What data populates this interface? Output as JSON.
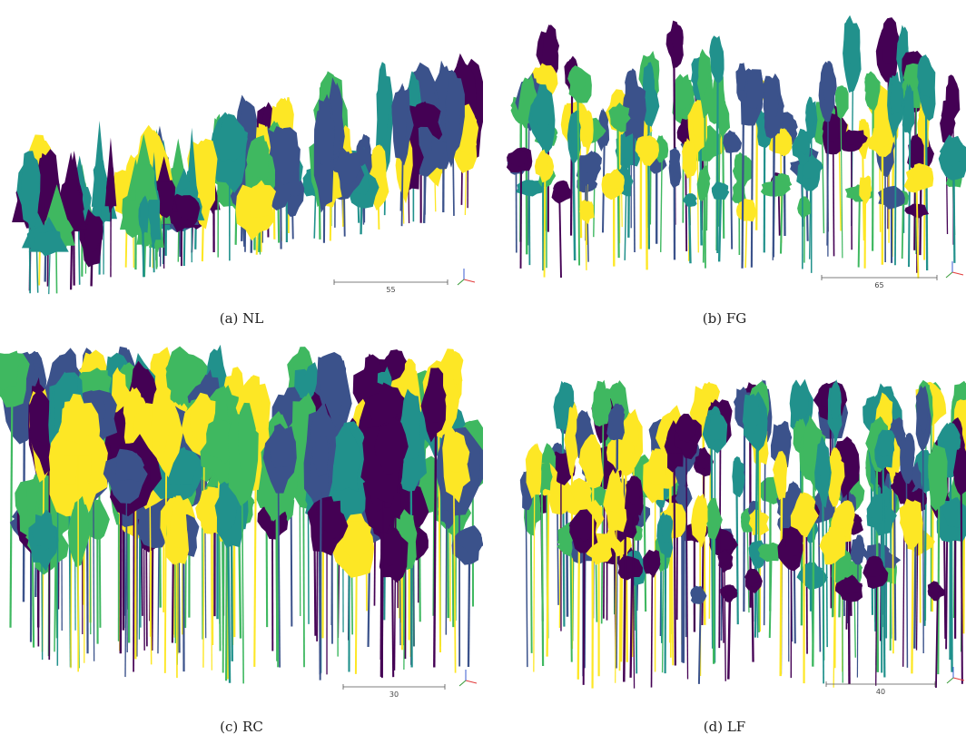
{
  "palette": {
    "dark_purple": "#440154",
    "blue": "#3b528b",
    "teal": "#21918c",
    "green": "#3fb860",
    "yellow": "#fde725"
  },
  "panels": [
    {
      "id": "a",
      "caption": "(a) NL",
      "scale_label": "55"
    },
    {
      "id": "b",
      "caption": "(b) FG",
      "scale_label": "65"
    },
    {
      "id": "c",
      "caption": "(c) RC",
      "scale_label": "30"
    },
    {
      "id": "d",
      "caption": "(d) LF",
      "scale_label": "40"
    }
  ]
}
